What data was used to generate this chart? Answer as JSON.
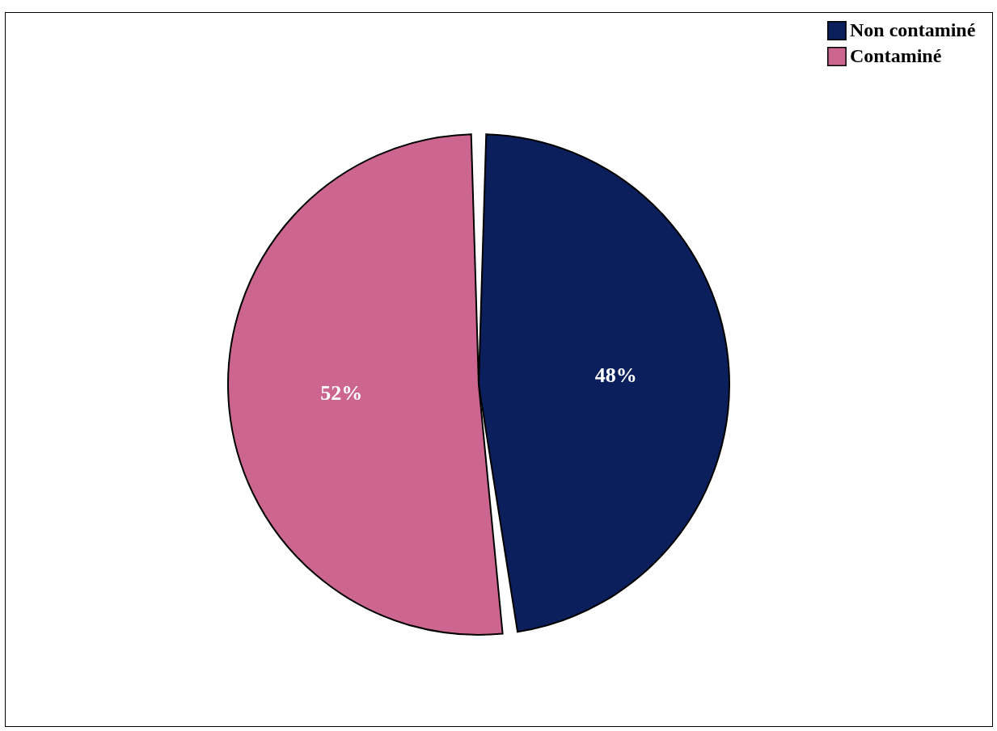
{
  "chart_data": {
    "type": "pie",
    "categories": [
      "Non contaminé",
      "Contaminé"
    ],
    "values": [
      48,
      52
    ],
    "colors": [
      "#0a1f5c",
      "#cc6690"
    ],
    "value_labels": [
      "48%",
      "52%"
    ],
    "legend": "top right"
  }
}
